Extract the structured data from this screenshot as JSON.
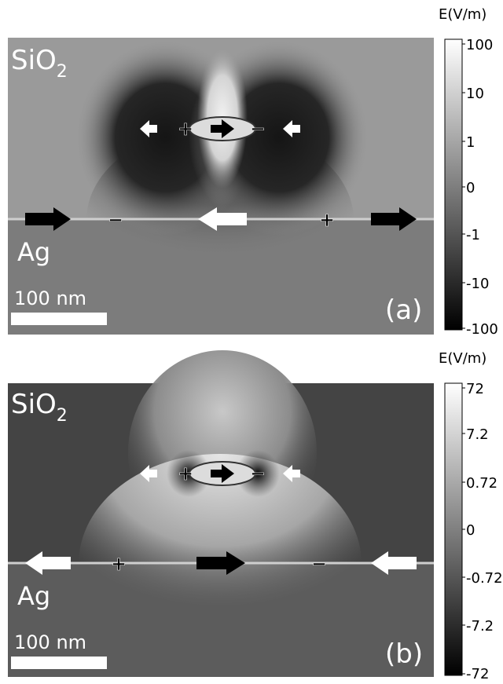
{
  "panels": [
    {
      "id": "a",
      "medium_top": "SiO",
      "medium_top_sub": "2",
      "medium_bottom": "Ag",
      "scale_bar": "100 nm",
      "panel_label": "(a)",
      "colorbar_title": "E(V/m)",
      "colorbar_ticks": [
        "100",
        "10",
        "1",
        "0",
        "-1",
        "-10",
        "-100"
      ],
      "particle_charges": [
        "+",
        "−"
      ],
      "interface_charges": [
        "−",
        "+"
      ]
    },
    {
      "id": "b",
      "medium_top": "SiO",
      "medium_top_sub": "2",
      "medium_bottom": "Ag",
      "scale_bar": "100 nm",
      "panel_label": "(b)",
      "colorbar_title": "E(V/m)",
      "colorbar_ticks": [
        "72",
        "7.2",
        "0.72",
        "0",
        "-0.72",
        "-7.2",
        "-72"
      ],
      "particle_charges": [
        "+",
        "−"
      ],
      "interface_charges": [
        "+",
        "−"
      ]
    }
  ],
  "colors": {
    "interface_line": "#cfcfcf",
    "arrow_dark": "#000000",
    "arrow_light": "#ffffff"
  }
}
